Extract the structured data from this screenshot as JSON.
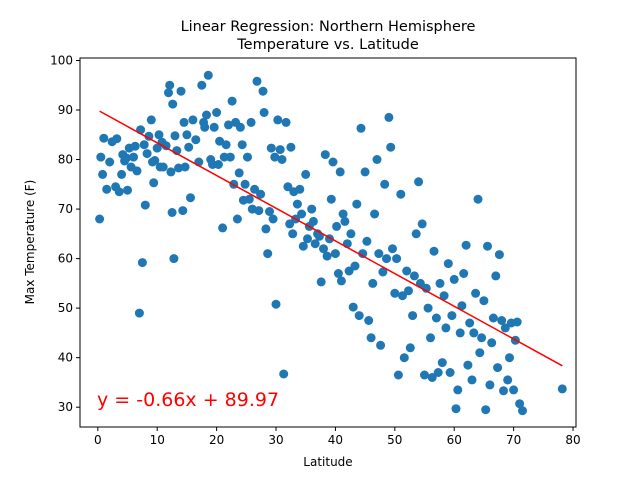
{
  "chart_data": {
    "type": "scatter",
    "title_line1": "Linear Regression: Northern Hemisphere",
    "title_line2": "Temperature vs. Latitude",
    "xlabel": "Latitude",
    "ylabel": "Max Temperature (F)",
    "xlim": [
      -3,
      80.5
    ],
    "ylim": [
      26,
      100.5
    ],
    "xticks": [
      0,
      10,
      20,
      30,
      40,
      50,
      60,
      70,
      80
    ],
    "yticks": [
      30,
      40,
      50,
      60,
      70,
      80,
      90,
      100
    ],
    "point_color": "#1f77b4",
    "line_color": "#ff0000",
    "equation_text": "y = -0.66x + 89.97",
    "regression": {
      "slope": -0.66,
      "intercept": 89.97,
      "x_range": [
        0.3,
        78.2
      ]
    },
    "points": [
      [
        0.3,
        68
      ],
      [
        0.5,
        80.5
      ],
      [
        0.8,
        77
      ],
      [
        1,
        84.3
      ],
      [
        1.5,
        74
      ],
      [
        2,
        79.5
      ],
      [
        2.4,
        83.6
      ],
      [
        3,
        74.5
      ],
      [
        3.2,
        84.2
      ],
      [
        3.6,
        73.5
      ],
      [
        4,
        77
      ],
      [
        4.2,
        81
      ],
      [
        4.5,
        79.7
      ],
      [
        4.8,
        80.3
      ],
      [
        5,
        73.8
      ],
      [
        5.3,
        82.3
      ],
      [
        5.6,
        78.5
      ],
      [
        6,
        80.5
      ],
      [
        6.3,
        82.7
      ],
      [
        6.6,
        77.7
      ],
      [
        7,
        49
      ],
      [
        7.2,
        86
      ],
      [
        7.5,
        59.2
      ],
      [
        7.8,
        83
      ],
      [
        8,
        70.8
      ],
      [
        8.3,
        81.2
      ],
      [
        8.6,
        84.7
      ],
      [
        9,
        88
      ],
      [
        9.2,
        79.5
      ],
      [
        9.4,
        75.3
      ],
      [
        9.6,
        79.8
      ],
      [
        10,
        82.3
      ],
      [
        10.3,
        85
      ],
      [
        10.5,
        78.5
      ],
      [
        10.8,
        83.5
      ],
      [
        11,
        78.5
      ],
      [
        11.5,
        82.8
      ],
      [
        11.9,
        93.5
      ],
      [
        12.1,
        95
      ],
      [
        12.3,
        77.5
      ],
      [
        12.5,
        69.3
      ],
      [
        12.6,
        91.2
      ],
      [
        12.8,
        60
      ],
      [
        13,
        84.8
      ],
      [
        13.3,
        81.8
      ],
      [
        13.6,
        78.3
      ],
      [
        14,
        93.8
      ],
      [
        14.3,
        69.7
      ],
      [
        14.5,
        87.5
      ],
      [
        14.7,
        78.5
      ],
      [
        15,
        85
      ],
      [
        15.3,
        82.5
      ],
      [
        15.6,
        72.3
      ],
      [
        16,
        88
      ],
      [
        16.5,
        84
      ],
      [
        17,
        79.5
      ],
      [
        17.5,
        95
      ],
      [
        17.8,
        87.5
      ],
      [
        18,
        86.5
      ],
      [
        18.3,
        89
      ],
      [
        18.6,
        97
      ],
      [
        19,
        80
      ],
      [
        19.3,
        79
      ],
      [
        19.6,
        86.5
      ],
      [
        20,
        89.5
      ],
      [
        20.3,
        79
      ],
      [
        20.5,
        83.7
      ],
      [
        21,
        66.2
      ],
      [
        21.3,
        80.5
      ],
      [
        21.6,
        83
      ],
      [
        22,
        87
      ],
      [
        22.3,
        80.5
      ],
      [
        22.6,
        91.8
      ],
      [
        22.9,
        75
      ],
      [
        23.2,
        87.5
      ],
      [
        23.5,
        68
      ],
      [
        23.8,
        77.3
      ],
      [
        24,
        86.5
      ],
      [
        24.3,
        83
      ],
      [
        24.5,
        71.8
      ],
      [
        24.8,
        75
      ],
      [
        25.2,
        80.5
      ],
      [
        25.5,
        72
      ],
      [
        25.8,
        87.5
      ],
      [
        26,
        70
      ],
      [
        26.4,
        74
      ],
      [
        26.8,
        95.8
      ],
      [
        27.1,
        69.7
      ],
      [
        27.4,
        73
      ],
      [
        27.8,
        93.8
      ],
      [
        28,
        89.5
      ],
      [
        28.3,
        66
      ],
      [
        28.6,
        61
      ],
      [
        28.9,
        69.5
      ],
      [
        29.2,
        82.3
      ],
      [
        29.5,
        68
      ],
      [
        29.8,
        80.5
      ],
      [
        30,
        50.8
      ],
      [
        30.3,
        88
      ],
      [
        30.7,
        82
      ],
      [
        31,
        80
      ],
      [
        31.3,
        36.7
      ],
      [
        31.7,
        87.5
      ],
      [
        32,
        74.5
      ],
      [
        32.3,
        67
      ],
      [
        32.5,
        82.5
      ],
      [
        32.8,
        65
      ],
      [
        33,
        73.5
      ],
      [
        33.3,
        68
      ],
      [
        33.6,
        71
      ],
      [
        34,
        74
      ],
      [
        34.3,
        69
      ],
      [
        34.6,
        62.5
      ],
      [
        35,
        77
      ],
      [
        35.3,
        64
      ],
      [
        35.6,
        66.5
      ],
      [
        36,
        70
      ],
      [
        36.3,
        67.5
      ],
      [
        36.6,
        63
      ],
      [
        37,
        65
      ],
      [
        37.3,
        64.5
      ],
      [
        37.6,
        55.3
      ],
      [
        38,
        62
      ],
      [
        38.3,
        81
      ],
      [
        38.6,
        60.5
      ],
      [
        39,
        64
      ],
      [
        39.3,
        72
      ],
      [
        39.6,
        79.5
      ],
      [
        40,
        61
      ],
      [
        40.2,
        66.5
      ],
      [
        40.5,
        57
      ],
      [
        40.8,
        77.5
      ],
      [
        41,
        55.5
      ],
      [
        41.3,
        69
      ],
      [
        41.6,
        67.5
      ],
      [
        42,
        63
      ],
      [
        42.3,
        57.5
      ],
      [
        42.6,
        65
      ],
      [
        43,
        50.2
      ],
      [
        43.3,
        58.5
      ],
      [
        43.6,
        71
      ],
      [
        44,
        48.5
      ],
      [
        44.3,
        86.3
      ],
      [
        44.6,
        61
      ],
      [
        45,
        77.5
      ],
      [
        45.3,
        63.5
      ],
      [
        45.6,
        47.5
      ],
      [
        46,
        44
      ],
      [
        46.3,
        55
      ],
      [
        46.6,
        69
      ],
      [
        47,
        80
      ],
      [
        47.3,
        61
      ],
      [
        47.6,
        42.5
      ],
      [
        48,
        57.3
      ],
      [
        48.3,
        75
      ],
      [
        48.6,
        60
      ],
      [
        49,
        88.5
      ],
      [
        49.3,
        82.5
      ],
      [
        49.6,
        62
      ],
      [
        50,
        53
      ],
      [
        50.3,
        60
      ],
      [
        50.6,
        36.5
      ],
      [
        51,
        73
      ],
      [
        51.3,
        52.5
      ],
      [
        51.6,
        40
      ],
      [
        52,
        57.5
      ],
      [
        52.3,
        53.5
      ],
      [
        52.6,
        42
      ],
      [
        53,
        48.5
      ],
      [
        53.3,
        56.5
      ],
      [
        53.6,
        65
      ],
      [
        54,
        75.5
      ],
      [
        54.3,
        55
      ],
      [
        54.6,
        67
      ],
      [
        55,
        36.5
      ],
      [
        55.3,
        54
      ],
      [
        55.6,
        50
      ],
      [
        56,
        44
      ],
      [
        56.3,
        36
      ],
      [
        56.6,
        61.5
      ],
      [
        57,
        48
      ],
      [
        57.3,
        37
      ],
      [
        57.6,
        55
      ],
      [
        58,
        39
      ],
      [
        58.3,
        52.5
      ],
      [
        58.6,
        46
      ],
      [
        59,
        59
      ],
      [
        59.3,
        37
      ],
      [
        59.6,
        48.5
      ],
      [
        60,
        55.8
      ],
      [
        60.3,
        29.7
      ],
      [
        60.6,
        33.5
      ],
      [
        61,
        45
      ],
      [
        61.3,
        50.5
      ],
      [
        61.6,
        57
      ],
      [
        62,
        62.7
      ],
      [
        62.3,
        38.5
      ],
      [
        62.6,
        47
      ],
      [
        63,
        35.5
      ],
      [
        63.3,
        45
      ],
      [
        63.6,
        53
      ],
      [
        64,
        72
      ],
      [
        64.3,
        41
      ],
      [
        64.6,
        44
      ],
      [
        65,
        51.5
      ],
      [
        65.3,
        29.5
      ],
      [
        65.6,
        62.5
      ],
      [
        66,
        34.5
      ],
      [
        66.3,
        43
      ],
      [
        66.6,
        48
      ],
      [
        67,
        56.5
      ],
      [
        67.3,
        38
      ],
      [
        67.6,
        60.8
      ],
      [
        68,
        47.5
      ],
      [
        68.3,
        33.3
      ],
      [
        68.6,
        46
      ],
      [
        69,
        35.5
      ],
      [
        69.3,
        40
      ],
      [
        69.6,
        47
      ],
      [
        70,
        33.5
      ],
      [
        70.3,
        43.5
      ],
      [
        70.6,
        47.2
      ],
      [
        71,
        30.7
      ],
      [
        71.5,
        29.3
      ],
      [
        78.2,
        33.7
      ]
    ]
  }
}
